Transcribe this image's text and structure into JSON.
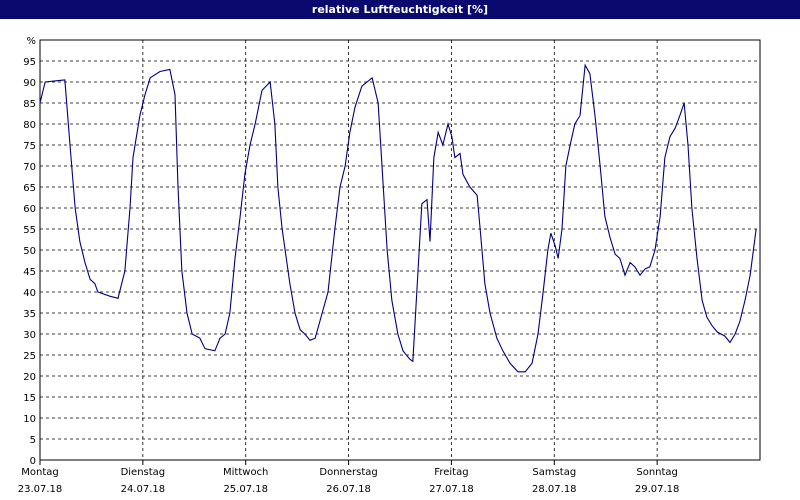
{
  "chart_data": {
    "type": "line",
    "title": "relative Luftfeuchtigkeit [%]",
    "x": [
      0,
      1.2,
      5.8,
      7,
      8.2,
      9.3,
      10.5,
      11.7,
      12.8,
      13.5,
      16.3,
      18.2,
      19.8,
      21,
      21.7,
      23.3,
      24.5,
      25.7,
      28,
      30.3,
      31.5,
      32.2,
      33.1,
      34.3,
      35.5,
      37.3,
      38.5,
      40.8,
      42,
      43.2,
      44.3,
      45.5,
      46.7,
      47.8,
      49,
      50.2,
      51.8,
      53.7,
      54.8,
      55.5,
      56.5,
      58.3,
      59.5,
      60.7,
      61.8,
      63,
      64.2,
      65.3,
      67.2,
      68.8,
      70,
      71.2,
      72.3,
      73.5,
      75.1,
      77.5,
      78.9,
      79.8,
      81,
      82.1,
      83.5,
      84.7,
      86.3,
      87,
      88.2,
      89.1,
      90.3,
      91,
      91.9,
      92.9,
      94,
      95.2,
      96.1,
      96.8,
      98,
      98.7,
      100.3,
      102,
      102.7,
      103.8,
      105,
      106.6,
      108,
      109.7,
      111.5,
      113.2,
      114.8,
      116.2,
      117.4,
      118.5,
      119.2,
      120.2,
      120.9,
      121.8,
      122.7,
      123.7,
      124.8,
      126,
      127.2,
      128.3,
      129.5,
      130.7,
      131.8,
      133,
      134.2,
      135.3,
      136.5,
      137.7,
      138.8,
      140,
      141.2,
      142.3,
      143.5,
      144.7,
      145.8,
      147,
      148.2,
      149.3,
      150.3,
      151.2,
      152.1,
      153.3,
      154.5,
      155.6,
      156.8,
      158,
      159.8,
      161,
      162.2,
      163.3,
      164.5,
      165.7,
      167.1
    ],
    "series": [
      {
        "color": "#000080",
        "values": [
          85,
          90,
          90.5,
          75,
          60,
          52,
          47,
          43,
          42,
          40,
          39,
          38.5,
          45,
          60,
          72,
          82,
          87,
          91,
          92.5,
          93,
          87,
          65,
          45,
          35,
          30,
          29,
          26.5,
          26,
          29,
          30,
          35,
          48,
          58,
          68,
          75,
          80,
          88,
          90,
          80,
          65,
          55,
          42,
          35,
          31,
          30,
          28.5,
          29,
          33,
          40,
          55,
          65,
          70,
          78,
          84,
          89,
          91,
          85,
          70,
          50,
          38,
          30,
          26,
          24,
          23.5,
          45,
          61,
          62,
          52,
          72,
          78,
          75,
          80,
          77,
          72,
          73,
          68,
          65,
          63,
          55,
          42,
          35,
          29,
          26,
          23,
          21,
          21,
          23,
          30,
          40,
          50,
          54,
          51,
          48,
          55,
          70,
          75,
          80,
          82,
          94,
          92,
          82,
          70,
          58,
          53,
          49,
          48,
          44,
          47,
          46,
          44,
          45.5,
          46,
          50,
          58,
          72,
          77,
          79,
          82,
          85,
          75,
          60,
          48,
          38,
          34,
          32,
          30.5,
          29.5,
          28,
          30,
          33,
          38,
          44,
          55
        ]
      }
    ],
    "xlim": [
      0,
      168
    ],
    "xticks": [
      {
        "value": 0,
        "label": "Montag"
      },
      {
        "value": 24,
        "label": "Dienstag"
      },
      {
        "value": 48,
        "label": "Mittwoch"
      },
      {
        "value": 72,
        "label": "Donnerstag"
      },
      {
        "value": 96,
        "label": "Freitag"
      },
      {
        "value": 120,
        "label": "Samstag"
      },
      {
        "value": 144,
        "label": "Sonntag"
      }
    ],
    "xtick_dates": [
      "23.07.18",
      "24.07.18",
      "25.07.18",
      "26.07.18",
      "27.07.18",
      "28.07.18",
      "29.07.18"
    ],
    "ylim": [
      0,
      100
    ],
    "yticks": [
      0,
      5,
      10,
      15,
      20,
      25,
      30,
      35,
      40,
      45,
      50,
      55,
      60,
      65,
      70,
      75,
      80,
      85,
      90,
      95,
      {
        "value": 100,
        "label": "%"
      }
    ],
    "grid": true
  }
}
